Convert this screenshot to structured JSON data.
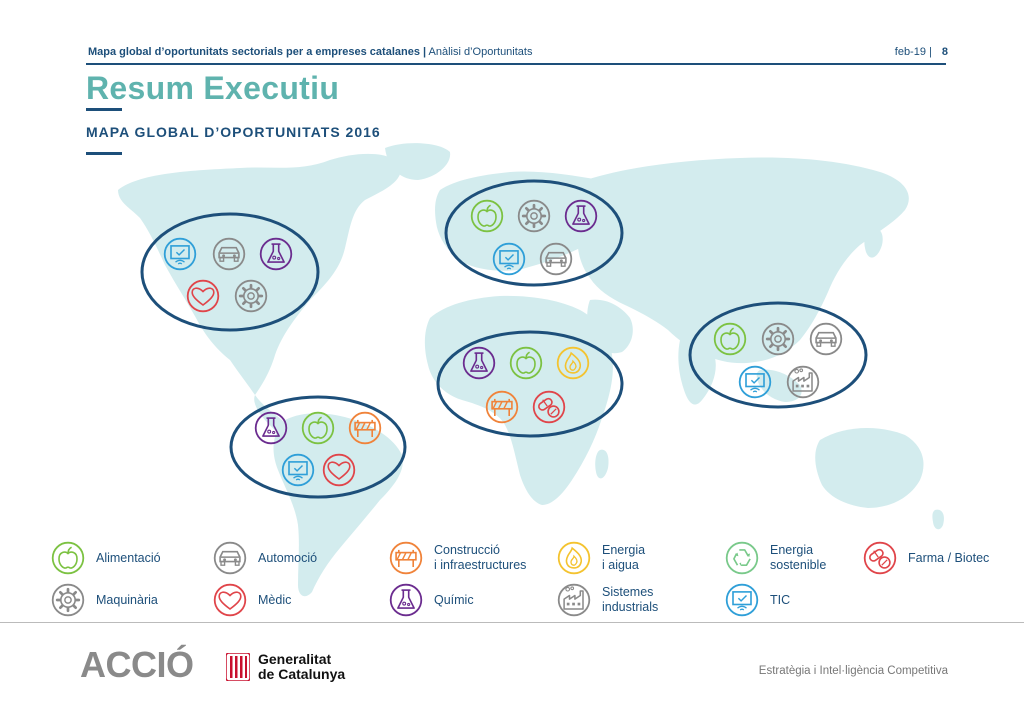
{
  "header": {
    "doc_title": "Mapa global d’oportunitats sectorials per a empreses catalanes |",
    "doc_section": "Anàlisi d’Oportunitats",
    "date": "feb-19 |",
    "page": "8"
  },
  "title": "Resum Executiu",
  "subtitle": "MAPA GLOBAL D’OPORTUNITATS 2016",
  "colors": {
    "teal": "#5fb3ae",
    "navy": "#1d4f7a",
    "green": "#7cc242",
    "gray": "#8a8a8a",
    "purple": "#6b2c8f",
    "red": "#e0454a",
    "orange": "#f0833a",
    "yellow": "#f4c32f",
    "lightgreen": "#79c98a",
    "blue": "#2f9fd8"
  },
  "regions": [
    {
      "id": "north-america",
      "icons": [
        "tic-icon",
        "automocio-icon",
        "quimic-icon",
        "medic-icon",
        "maquinaria-icon"
      ]
    },
    {
      "id": "europe",
      "icons": [
        "alimentacio-icon",
        "maquinaria-icon",
        "quimic-icon",
        "tic-icon",
        "automocio-icon"
      ]
    },
    {
      "id": "asia",
      "icons": [
        "alimentacio-icon",
        "maquinaria-icon",
        "automocio-icon",
        "tic-icon",
        "sistemes-industrials-icon"
      ]
    },
    {
      "id": "africa",
      "icons": [
        "quimic-icon",
        "alimentacio-icon",
        "energia-aigua-icon",
        "construccio-icon",
        "farma-biotec-icon"
      ]
    },
    {
      "id": "south-america",
      "icons": [
        "quimic-icon",
        "alimentacio-icon",
        "construccio-icon",
        "tic-icon",
        "medic-icon"
      ]
    }
  ],
  "legend": [
    {
      "key": "alimentacio",
      "label": "Alimentació",
      "icon": "apple-icon"
    },
    {
      "key": "automocio",
      "label": "Automoció",
      "icon": "car-icon"
    },
    {
      "key": "construccio",
      "label": "Construcció\ni infraestructures",
      "icon": "barrier-icon"
    },
    {
      "key": "energia-aigua",
      "label": "Energia\ni aigua",
      "icon": "flame-drop-icon"
    },
    {
      "key": "energia-sostenible",
      "label": "Energia\nsostenible",
      "icon": "recycle-icon"
    },
    {
      "key": "farma",
      "label": "Farma / Biotec",
      "icon": "pills-icon"
    },
    {
      "key": "maquinaria",
      "label": "Maquinària",
      "icon": "gear-icon"
    },
    {
      "key": "medic",
      "label": "Mèdic",
      "icon": "heart-icon"
    },
    {
      "key": "quimic",
      "label": "Químic",
      "icon": "flask-icon"
    },
    {
      "key": "sistemes",
      "label": "Sistemes\nindustrials",
      "icon": "factory-icon"
    },
    {
      "key": "tic",
      "label": "TIC",
      "icon": "screen-wifi-icon"
    }
  ],
  "footer": {
    "brand": "ACCIÓ",
    "gencat_line1": "Generalitat",
    "gencat_line2": "de Catalunya",
    "tagline": "Estratègia i Intel·ligència Competitiva"
  }
}
